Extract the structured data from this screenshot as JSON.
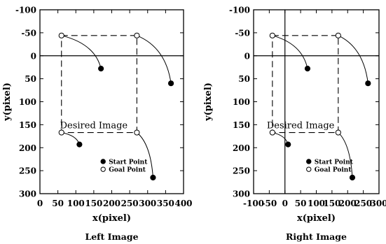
{
  "chart_data": [
    {
      "type": "scatter",
      "panel": "left",
      "caption": "Left Image",
      "xlabel": "x(pixel)",
      "ylabel": "y(pixel)",
      "xlim": [
        0,
        400
      ],
      "ylim": [
        300,
        -100
      ],
      "y_axis_inverted": true,
      "x_ticks": [
        0,
        50,
        100,
        150,
        200,
        250,
        300,
        350,
        400
      ],
      "y_ticks": [
        -100,
        -50,
        0,
        50,
        100,
        150,
        200,
        250,
        300
      ],
      "zero_lines": [
        "y=0"
      ],
      "annotation": {
        "text": "Desired Image",
        "x": 150,
        "y": 152
      },
      "legend": {
        "placement": "lower-middle",
        "entries": [
          "Start Point",
          "Goal Point"
        ]
      },
      "series": [
        {
          "name": "Start Point",
          "marker": "filled-circle",
          "x": [
            170,
            365,
            110,
            315
          ],
          "y": [
            28,
            60,
            193,
            265
          ]
        },
        {
          "name": "Goal Point",
          "marker": "open-circle",
          "x": [
            60,
            270,
            60,
            270
          ],
          "y": [
            -44,
            -44,
            167,
            167
          ]
        }
      ],
      "trajectories": [
        {
          "from": [
            170,
            28
          ],
          "to": [
            60,
            -44
          ]
        },
        {
          "from": [
            365,
            60
          ],
          "to": [
            270,
            -44
          ]
        },
        {
          "from": [
            110,
            193
          ],
          "to": [
            60,
            167
          ]
        },
        {
          "from": [
            315,
            265
          ],
          "to": [
            270,
            167
          ]
        }
      ],
      "desired_image_box": {
        "x": [
          60,
          270
        ],
        "y": [
          -44,
          167
        ]
      }
    },
    {
      "type": "scatter",
      "panel": "right",
      "caption": "Right Image",
      "xlabel": "x(pixel)",
      "ylabel": "y(pixel)",
      "xlim": [
        -100,
        300
      ],
      "ylim": [
        300,
        -100
      ],
      "y_axis_inverted": true,
      "x_ticks": [
        -100,
        -50,
        0,
        50,
        100,
        150,
        200,
        250,
        300
      ],
      "y_ticks": [
        -100,
        -50,
        0,
        50,
        100,
        150,
        200,
        250,
        300
      ],
      "zero_lines": [
        "y=0",
        "x=0"
      ],
      "annotation": {
        "text": "Desired Image",
        "x": 50,
        "y": 152
      },
      "legend": {
        "placement": "lower-middle",
        "entries": [
          "Start Point",
          "Goal Point"
        ]
      },
      "series": [
        {
          "name": "Start Point",
          "marker": "filled-circle",
          "x": [
            72,
            265,
            10,
            215
          ],
          "y": [
            28,
            60,
            193,
            265
          ]
        },
        {
          "name": "Goal Point",
          "marker": "open-circle",
          "x": [
            -40,
            170,
            -40,
            170
          ],
          "y": [
            -44,
            -44,
            167,
            167
          ]
        }
      ],
      "trajectories": [
        {
          "from": [
            72,
            28
          ],
          "to": [
            -40,
            -44
          ]
        },
        {
          "from": [
            265,
            60
          ],
          "to": [
            170,
            -44
          ]
        },
        {
          "from": [
            10,
            193
          ],
          "to": [
            -40,
            167
          ]
        },
        {
          "from": [
            215,
            265
          ],
          "to": [
            170,
            167
          ]
        }
      ],
      "desired_image_box": {
        "x": [
          -40,
          170
        ],
        "y": [
          -44,
          167
        ]
      }
    }
  ]
}
